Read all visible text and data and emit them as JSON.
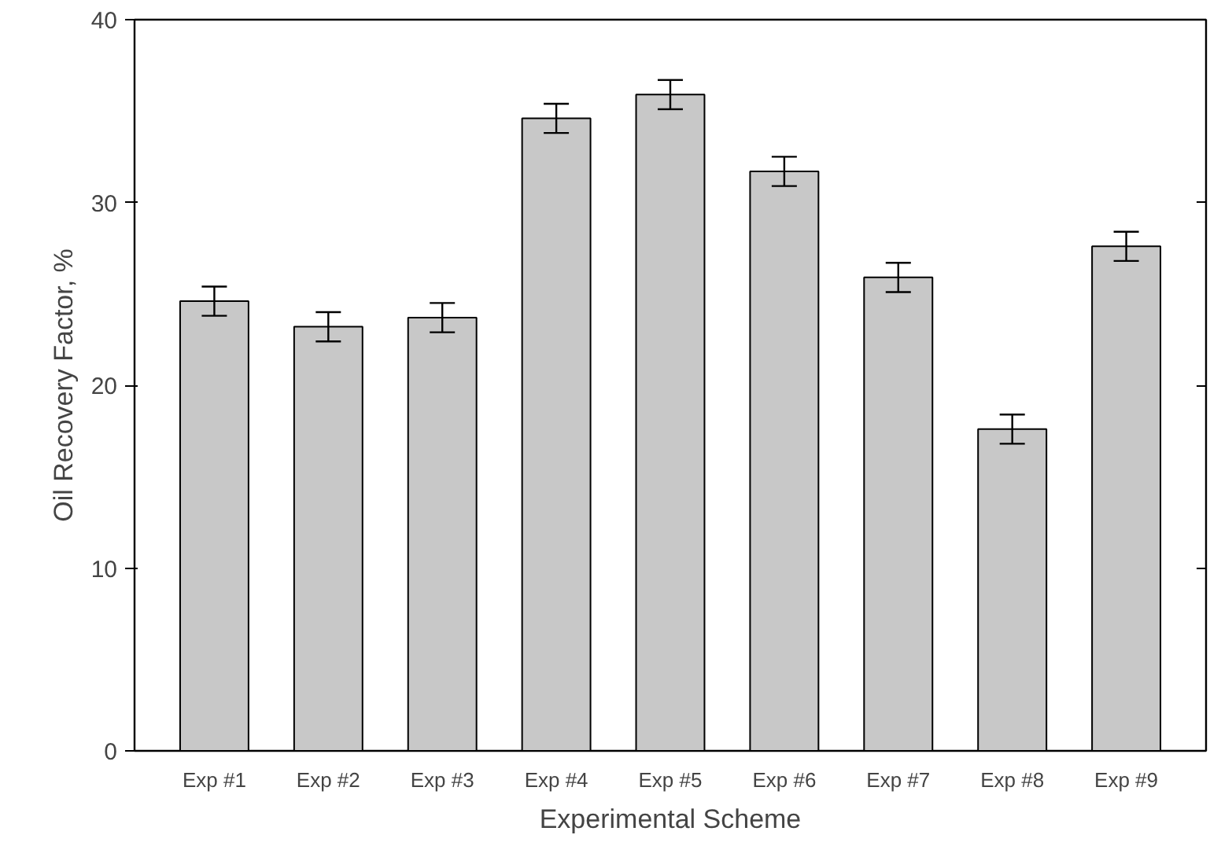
{
  "chart_data": {
    "type": "bar",
    "categories": [
      "Exp #1",
      "Exp #2",
      "Exp #3",
      "Exp #4",
      "Exp #5",
      "Exp #6",
      "Exp #7",
      "Exp #8",
      "Exp #9"
    ],
    "values": [
      24.6,
      23.2,
      23.7,
      34.6,
      35.9,
      31.7,
      25.9,
      17.6,
      27.6
    ],
    "errors": [
      0.8,
      0.8,
      0.8,
      0.8,
      0.8,
      0.8,
      0.8,
      0.8,
      0.8
    ],
    "color": "#c8c8c8",
    "xlabel": "Experimental Scheme",
    "ylabel": "Oil Recovery Factor, %",
    "ylim": [
      0,
      40
    ],
    "yticks": [
      0,
      10,
      20,
      30,
      40
    ],
    "grid": false
  }
}
